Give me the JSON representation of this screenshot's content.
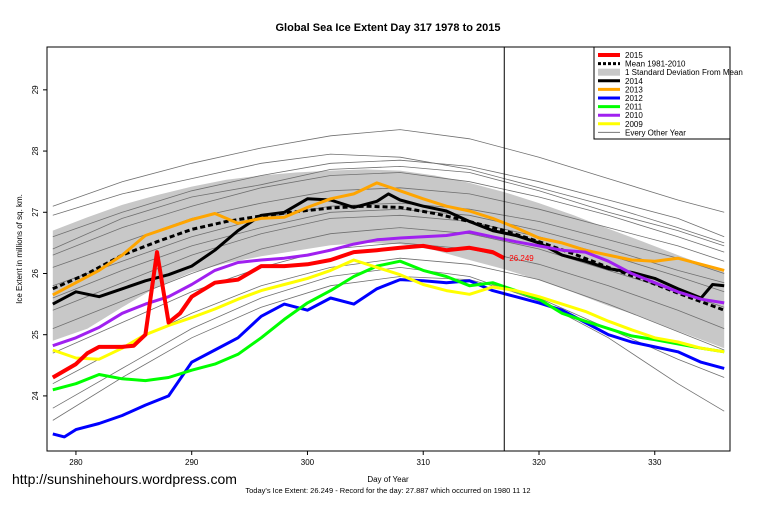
{
  "chart_data": {
    "type": "line",
    "title": "Global Sea Ice Extent Day 317 1978 to 2015",
    "xlabel": "Day of Year",
    "ylabel": "Ice Extent in millions of sq. km.",
    "xlim": [
      277.5,
      336.5
    ],
    "ylim": [
      23.1,
      29.7
    ],
    "x_ticks": [
      280,
      290,
      300,
      310,
      320,
      330
    ],
    "y_ticks": [
      24,
      25,
      26,
      27,
      28,
      29
    ],
    "current_day": 317,
    "end_label": "26.249",
    "caption": "Today's Ice Extent: 26.249  -  Record for the day: 27.887 which occurred on 1980 11 12",
    "website": "http://sunshinehours.wordpress.com",
    "legend_position": "top-right",
    "legend": [
      {
        "label": "2015",
        "color": "#ff0000",
        "style": "line",
        "width": 4
      },
      {
        "label": "Mean 1981-2010",
        "color": "#000000",
        "style": "dashed",
        "width": 3
      },
      {
        "label": "1 Standard Deviation From Mean",
        "color": "#c8c8c8",
        "style": "fill",
        "width": 8
      },
      {
        "label": "2014",
        "color": "#000000",
        "style": "line",
        "width": 3
      },
      {
        "label": "2013",
        "color": "#ffa500",
        "style": "line",
        "width": 3
      },
      {
        "label": "2012",
        "color": "#0000ff",
        "style": "line",
        "width": 3
      },
      {
        "label": "2011",
        "color": "#00ff00",
        "style": "line",
        "width": 3
      },
      {
        "label": "2010",
        "color": "#a020f0",
        "style": "line",
        "width": 3
      },
      {
        "label": "2009",
        "color": "#ffff00",
        "style": "line",
        "width": 3
      },
      {
        "label": "Every Other Year",
        "color": "#777777",
        "style": "line",
        "width": 1
      }
    ],
    "mean": {
      "name": "Mean 1981-2010",
      "x": [
        278,
        281,
        284,
        287,
        290,
        293,
        296,
        299,
        302,
        305,
        308,
        311,
        314,
        317,
        320,
        323,
        326,
        329,
        332,
        336
      ],
      "y": [
        25.75,
        26.0,
        26.3,
        26.52,
        26.72,
        26.85,
        26.94,
        27.01,
        27.07,
        27.1,
        27.08,
        26.98,
        26.85,
        26.7,
        26.52,
        26.32,
        26.1,
        25.9,
        25.68,
        25.4
      ]
    },
    "std_band": {
      "name": "1 Standard Deviation From Mean",
      "x": [
        278,
        281,
        284,
        287,
        290,
        293,
        296,
        299,
        302,
        305,
        308,
        311,
        314,
        317,
        320,
        323,
        326,
        329,
        332,
        336
      ],
      "upper": [
        26.7,
        26.92,
        27.12,
        27.28,
        27.42,
        27.53,
        27.6,
        27.65,
        27.68,
        27.7,
        27.68,
        27.6,
        27.48,
        27.33,
        27.15,
        26.95,
        26.73,
        26.52,
        26.3,
        26.02
      ],
      "lower": [
        24.9,
        25.1,
        25.45,
        25.78,
        26.02,
        26.17,
        26.28,
        26.37,
        26.46,
        26.5,
        26.48,
        26.38,
        26.22,
        26.07,
        25.89,
        25.69,
        25.47,
        25.28,
        25.06,
        24.78
      ]
    },
    "series": [
      {
        "name": "2014",
        "color": "#000000",
        "width": 3,
        "x": [
          278,
          280,
          282,
          284,
          286,
          288,
          290,
          292,
          294,
          296,
          298,
          300,
          302,
          304,
          306,
          307,
          308,
          310,
          312,
          314,
          316,
          318,
          320,
          322,
          324,
          326,
          328,
          330,
          332,
          334,
          335,
          336
        ],
        "y": [
          25.5,
          25.7,
          25.62,
          25.75,
          25.88,
          25.98,
          26.12,
          26.38,
          26.7,
          26.95,
          27.0,
          27.22,
          27.2,
          27.08,
          27.18,
          27.3,
          27.2,
          27.1,
          27.02,
          26.85,
          26.7,
          26.62,
          26.5,
          26.3,
          26.2,
          26.08,
          26.02,
          25.92,
          25.75,
          25.6,
          25.82,
          25.8
        ]
      },
      {
        "name": "2013",
        "color": "#ffa500",
        "width": 3,
        "x": [
          278,
          280,
          282,
          284,
          286,
          288,
          290,
          292,
          294,
          296,
          298,
          300,
          302,
          304,
          306,
          308,
          310,
          312,
          314,
          316,
          318,
          320,
          322,
          324,
          326,
          328,
          330,
          332,
          334,
          336
        ],
        "y": [
          25.65,
          25.85,
          26.05,
          26.3,
          26.62,
          26.75,
          26.88,
          26.98,
          26.82,
          26.9,
          26.92,
          27.08,
          27.22,
          27.3,
          27.48,
          27.35,
          27.22,
          27.1,
          27.02,
          26.9,
          26.75,
          26.58,
          26.5,
          26.38,
          26.3,
          26.22,
          26.2,
          26.25,
          26.15,
          26.05
        ]
      },
      {
        "name": "2012",
        "color": "#0000ff",
        "width": 3,
        "x": [
          278,
          279,
          280,
          282,
          284,
          286,
          288,
          290,
          292,
          294,
          296,
          298,
          300,
          302,
          304,
          306,
          308,
          310,
          312,
          314,
          316,
          318,
          320,
          322,
          324,
          326,
          328,
          330,
          332,
          334,
          336
        ],
        "y": [
          23.38,
          23.33,
          23.45,
          23.55,
          23.68,
          23.85,
          24.0,
          24.55,
          24.75,
          24.95,
          25.3,
          25.5,
          25.4,
          25.6,
          25.5,
          25.75,
          25.9,
          25.88,
          25.85,
          25.88,
          25.72,
          25.62,
          25.52,
          25.4,
          25.2,
          25.0,
          24.88,
          24.8,
          24.72,
          24.55,
          24.45
        ]
      },
      {
        "name": "2011",
        "color": "#00ff00",
        "width": 3,
        "x": [
          278,
          280,
          282,
          284,
          286,
          288,
          290,
          292,
          294,
          296,
          298,
          300,
          302,
          304,
          306,
          308,
          310,
          312,
          314,
          316,
          318,
          320,
          322,
          324,
          326,
          328,
          330,
          332,
          334,
          336
        ],
        "y": [
          24.1,
          24.2,
          24.35,
          24.28,
          24.25,
          24.3,
          24.42,
          24.52,
          24.68,
          24.95,
          25.25,
          25.52,
          25.72,
          25.95,
          26.12,
          26.2,
          26.05,
          25.95,
          25.8,
          25.85,
          25.72,
          25.58,
          25.35,
          25.22,
          25.1,
          24.98,
          24.92,
          24.85,
          24.78,
          24.72
        ]
      },
      {
        "name": "2010",
        "color": "#a020f0",
        "width": 3,
        "x": [
          278,
          280,
          282,
          284,
          286,
          288,
          290,
          292,
          294,
          296,
          298,
          300,
          302,
          304,
          306,
          308,
          310,
          312,
          314,
          316,
          318,
          320,
          322,
          324,
          326,
          328,
          330,
          332,
          334,
          336
        ],
        "y": [
          24.82,
          24.95,
          25.12,
          25.35,
          25.5,
          25.62,
          25.82,
          26.05,
          26.18,
          26.22,
          26.25,
          26.3,
          26.38,
          26.48,
          26.55,
          26.58,
          26.6,
          26.62,
          26.68,
          26.6,
          26.52,
          26.45,
          26.38,
          26.35,
          26.2,
          26.0,
          25.85,
          25.7,
          25.58,
          25.52
        ]
      },
      {
        "name": "2009",
        "color": "#ffff00",
        "width": 3,
        "x": [
          278,
          280,
          282,
          284,
          286,
          288,
          290,
          292,
          294,
          296,
          298,
          300,
          302,
          304,
          306,
          308,
          310,
          312,
          314,
          316,
          318,
          320,
          322,
          324,
          326,
          328,
          330,
          332,
          334,
          336
        ],
        "y": [
          24.75,
          24.62,
          24.6,
          24.78,
          25.0,
          25.15,
          25.28,
          25.42,
          25.58,
          25.72,
          25.82,
          25.92,
          26.05,
          26.22,
          26.1,
          25.98,
          25.82,
          25.72,
          25.66,
          25.78,
          25.72,
          25.62,
          25.5,
          25.38,
          25.22,
          25.08,
          24.95,
          24.88,
          24.78,
          24.72
        ]
      },
      {
        "name": "2015",
        "color": "#ff0000",
        "width": 4,
        "x": [
          278,
          280,
          281,
          282,
          284,
          285,
          286,
          287,
          288,
          289,
          290,
          292,
          294,
          296,
          298,
          300,
          302,
          304,
          306,
          308,
          310,
          312,
          314,
          316,
          317
        ],
        "y": [
          24.3,
          24.52,
          24.7,
          24.8,
          24.8,
          24.82,
          25.0,
          26.35,
          25.2,
          25.35,
          25.62,
          25.85,
          25.9,
          26.12,
          26.12,
          26.15,
          26.22,
          26.35,
          26.38,
          26.42,
          26.45,
          26.38,
          26.42,
          26.35,
          26.25
        ]
      }
    ],
    "other_years": [
      {
        "name": "other-year-1",
        "x": [
          278,
          284,
          290,
          296,
          302,
          308,
          314,
          320,
          326,
          332,
          336
        ],
        "y": [
          26.95,
          27.3,
          27.55,
          27.8,
          27.95,
          27.9,
          27.7,
          27.4,
          27.1,
          26.75,
          26.5
        ]
      },
      {
        "name": "other-year-2",
        "x": [
          278,
          284,
          290,
          296,
          302,
          308,
          314,
          320,
          326,
          332,
          336
        ],
        "y": [
          26.6,
          27.0,
          27.35,
          27.6,
          27.8,
          27.85,
          27.75,
          27.5,
          27.2,
          26.9,
          26.6
        ]
      },
      {
        "name": "other-year-3",
        "x": [
          278,
          284,
          290,
          296,
          302,
          308,
          314,
          320,
          326,
          332,
          336
        ],
        "y": [
          26.3,
          26.75,
          27.1,
          27.4,
          27.6,
          27.65,
          27.5,
          27.25,
          26.95,
          26.6,
          26.35
        ]
      },
      {
        "name": "other-year-4",
        "x": [
          278,
          284,
          290,
          296,
          302,
          308,
          314,
          320,
          326,
          332,
          336
        ],
        "y": [
          26.1,
          26.5,
          26.9,
          27.15,
          27.35,
          27.4,
          27.3,
          27.05,
          26.75,
          26.45,
          26.2
        ]
      },
      {
        "name": "other-year-5",
        "x": [
          278,
          284,
          290,
          296,
          302,
          308,
          314,
          320,
          326,
          332,
          336
        ],
        "y": [
          25.8,
          26.2,
          26.6,
          26.9,
          27.1,
          27.15,
          27.05,
          26.85,
          26.55,
          26.25,
          26.0
        ]
      },
      {
        "name": "other-year-6",
        "x": [
          278,
          284,
          290,
          296,
          302,
          308,
          314,
          320,
          326,
          332,
          336
        ],
        "y": [
          25.4,
          25.85,
          26.3,
          26.65,
          26.9,
          26.95,
          26.85,
          26.6,
          26.3,
          25.95,
          25.7
        ]
      },
      {
        "name": "other-year-7",
        "x": [
          278,
          284,
          290,
          296,
          302,
          308,
          314,
          320,
          326,
          332,
          336
        ],
        "y": [
          25.1,
          25.55,
          26.0,
          26.4,
          26.65,
          26.75,
          26.65,
          26.4,
          26.05,
          25.7,
          25.45
        ]
      },
      {
        "name": "other-year-8",
        "x": [
          278,
          284,
          290,
          296,
          302,
          308,
          314,
          320,
          326,
          332,
          336
        ],
        "y": [
          24.7,
          25.2,
          25.7,
          26.1,
          26.4,
          26.5,
          26.4,
          26.15,
          25.8,
          25.4,
          25.1
        ]
      },
      {
        "name": "other-year-9",
        "x": [
          278,
          284,
          290,
          296,
          302,
          308,
          314,
          320,
          326,
          332,
          336
        ],
        "y": [
          24.2,
          24.8,
          25.35,
          25.8,
          26.1,
          26.25,
          26.15,
          25.9,
          25.5,
          25.05,
          24.75
        ]
      },
      {
        "name": "other-year-10",
        "x": [
          278,
          284,
          290,
          296,
          302,
          308,
          314,
          320,
          326,
          332,
          336
        ],
        "y": [
          23.6,
          24.3,
          24.95,
          25.45,
          25.8,
          25.95,
          25.9,
          25.6,
          25.1,
          24.6,
          24.3
        ]
      },
      {
        "name": "other-year-11",
        "x": [
          278,
          284,
          290,
          296,
          302,
          308,
          314,
          320,
          326,
          332,
          336
        ],
        "y": [
          23.8,
          24.45,
          25.1,
          25.6,
          25.95,
          26.1,
          25.95,
          25.55,
          24.95,
          24.2,
          23.75
        ]
      },
      {
        "name": "other-year-12",
        "x": [
          278,
          284,
          290,
          296,
          302,
          308,
          314,
          320,
          326,
          332,
          336
        ],
        "y": [
          27.1,
          27.5,
          27.8,
          28.05,
          28.25,
          28.35,
          28.2,
          27.9,
          27.55,
          27.2,
          27.0
        ]
      },
      {
        "name": "other-year-13",
        "x": [
          278,
          284,
          290,
          296,
          302,
          308,
          314,
          320,
          326,
          332,
          336
        ],
        "y": [
          26.4,
          26.9,
          27.25,
          27.45,
          27.7,
          27.75,
          27.65,
          27.35,
          27.0,
          26.7,
          26.45
        ]
      },
      {
        "name": "other-year-14",
        "x": [
          278,
          284,
          290,
          296,
          302,
          308,
          314,
          320,
          326,
          332,
          336
        ],
        "y": [
          25.6,
          26.05,
          26.45,
          26.75,
          27.0,
          27.05,
          26.95,
          26.7,
          26.4,
          26.05,
          25.85
        ]
      }
    ]
  }
}
